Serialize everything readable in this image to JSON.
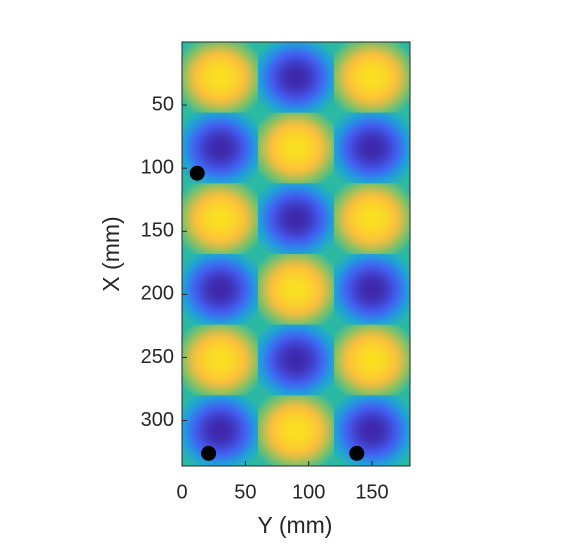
{
  "chart_data": {
    "type": "heatmap",
    "xlabel": "Y (mm)",
    "ylabel": "X (mm)",
    "x": [
      30,
      90,
      150
    ],
    "y": [
      28,
      84,
      140,
      196,
      252,
      308
    ],
    "z": [
      [
        1,
        -1,
        1
      ],
      [
        -1,
        1,
        -1
      ],
      [
        1,
        -1,
        1
      ],
      [
        -1,
        1,
        -1
      ],
      [
        1,
        -1,
        1
      ],
      [
        -1,
        1,
        -1
      ]
    ],
    "zlim": [
      -1,
      1
    ],
    "colormap": [
      "#3e26a8",
      "#4361f7",
      "#1ea3da",
      "#2bb9a3",
      "#86c164",
      "#fcbd3d",
      "#f9e020"
    ],
    "xlim": [
      0,
      180
    ],
    "ylim": [
      0,
      336
    ],
    "y_reversed": true,
    "xticks": [
      0,
      50,
      100,
      150
    ],
    "yticks": [
      50,
      100,
      150,
      200,
      250,
      300
    ],
    "points": {
      "x": [
        12,
        21,
        138
      ],
      "y": [
        104,
        326,
        326
      ],
      "color": "#000000"
    }
  }
}
